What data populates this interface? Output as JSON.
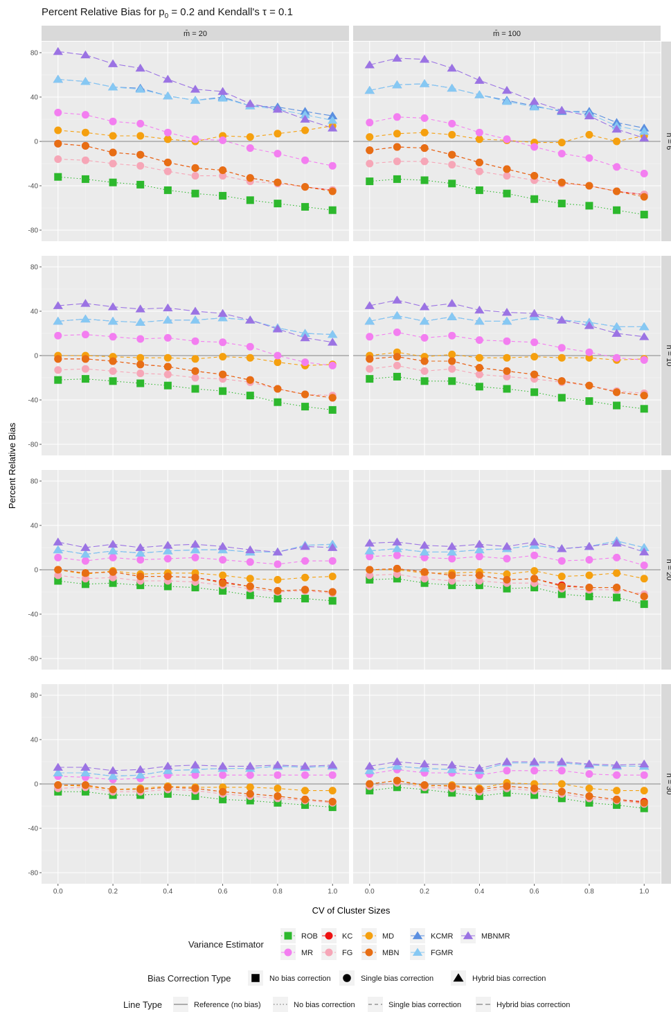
{
  "chart_data": {
    "type": "line",
    "title": "Percent Relative Bias for p₀ = 0.2 and Kendall's τ = 0.1",
    "title_parts": {
      "pre": "Percent Relative Bias for p",
      "sub": "0",
      "post": " = 0.2 and Kendall's τ = 0.1"
    },
    "xlabel": "CV of Cluster Sizes",
    "ylabel": "Percent Relative Bias",
    "x": [
      0.0,
      0.1,
      0.2,
      0.3,
      0.4,
      0.5,
      0.6,
      0.7,
      0.8,
      0.9,
      1.0
    ],
    "x_ticks": [
      "0.0",
      "0.2",
      "0.4",
      "0.6",
      "0.8",
      "1.0"
    ],
    "y_ticks": [
      -80,
      -40,
      0,
      40,
      80
    ],
    "ylim": [
      -90,
      90
    ],
    "col_strips": [
      "m̄ = 20",
      "m̄ = 100"
    ],
    "row_strips": [
      "n = 6",
      "n = 10",
      "n = 20",
      "n = 30"
    ],
    "reference_line": 0,
    "grid": true,
    "estimators": [
      {
        "name": "ROB",
        "color": "#2db82d",
        "shape": "square",
        "line": "dotted"
      },
      {
        "name": "KC",
        "color": "#ee1111",
        "shape": "circle",
        "line": "dashed"
      },
      {
        "name": "MD",
        "color": "#f5a00f",
        "shape": "circle",
        "line": "dashed"
      },
      {
        "name": "KCMR",
        "color": "#5b8fe0",
        "shape": "triangle",
        "line": "longdash"
      },
      {
        "name": "MBNMR",
        "color": "#9b73e3",
        "shape": "triangle",
        "line": "longdash"
      },
      {
        "name": "MR",
        "color": "#f37ef0",
        "shape": "circle",
        "line": "dashed"
      },
      {
        "name": "FG",
        "color": "#f6a6b7",
        "shape": "circle",
        "line": "dashed"
      },
      {
        "name": "MBN",
        "color": "#e76e14",
        "shape": "circle",
        "line": "dashed"
      },
      {
        "name": "FGMR",
        "color": "#86c8f3",
        "shape": "triangle",
        "line": "longdash"
      }
    ],
    "panels": [
      {
        "row": 0,
        "col": 0,
        "series": {
          "ROB": [
            -32,
            -34,
            -37,
            -39,
            -44,
            -47,
            -49,
            -53,
            -56,
            -59,
            -62
          ],
          "KC": [
            -2,
            -4,
            -10,
            -12,
            -19,
            -24,
            -26,
            -33,
            -37,
            -41,
            -44
          ],
          "MD": [
            10,
            8,
            5,
            5,
            2,
            0,
            5,
            4,
            7,
            10,
            14
          ],
          "KCMR": [
            56,
            54,
            49,
            48,
            41,
            37,
            40,
            32,
            31,
            27,
            23
          ],
          "MBNMR": [
            81,
            78,
            70,
            66,
            56,
            47,
            45,
            34,
            29,
            20,
            12
          ],
          "MR": [
            26,
            24,
            18,
            16,
            8,
            2,
            1,
            -6,
            -11,
            -17,
            -22
          ],
          "FG": [
            -16,
            -17,
            -20,
            -22,
            -27,
            -31,
            -31,
            -36,
            -38,
            -41,
            -44
          ],
          "MBN": [
            -2,
            -4,
            -10,
            -12,
            -19,
            -24,
            -26,
            -33,
            -37,
            -41,
            -45
          ],
          "FGMR": [
            56,
            54,
            49,
            47,
            41,
            37,
            39,
            32,
            29,
            24,
            19
          ]
        }
      },
      {
        "row": 0,
        "col": 1,
        "series": {
          "ROB": [
            -36,
            -34,
            -35,
            -38,
            -44,
            -47,
            -52,
            -56,
            -58,
            -62,
            -66
          ],
          "KC": [
            -8,
            -5,
            -6,
            -12,
            -19,
            -25,
            -31,
            -37,
            -40,
            -45,
            -48
          ],
          "MD": [
            4,
            7,
            8,
            6,
            2,
            1,
            -1,
            -1,
            6,
            0,
            5
          ],
          "KCMR": [
            46,
            51,
            52,
            48,
            42,
            37,
            32,
            27,
            27,
            17,
            12
          ],
          "MBNMR": [
            69,
            75,
            74,
            66,
            55,
            46,
            36,
            28,
            23,
            11,
            3
          ],
          "MR": [
            17,
            22,
            21,
            16,
            8,
            2,
            -5,
            -11,
            -15,
            -23,
            -29
          ],
          "FG": [
            -20,
            -18,
            -18,
            -21,
            -27,
            -31,
            -35,
            -38,
            -40,
            -45,
            -48
          ],
          "MBN": [
            -8,
            -5,
            -6,
            -12,
            -19,
            -25,
            -31,
            -37,
            -40,
            -45,
            -50
          ],
          "FGMR": [
            46,
            51,
            52,
            48,
            42,
            36,
            31,
            28,
            25,
            14,
            9
          ]
        }
      },
      {
        "row": 1,
        "col": 0,
        "series": {
          "ROB": [
            -22,
            -21,
            -23,
            -25,
            -27,
            -30,
            -32,
            -36,
            -42,
            -46,
            -49
          ],
          "KC": [
            -3,
            -3,
            -5,
            -8,
            -10,
            -14,
            -17,
            -22,
            -30,
            -35,
            -38
          ],
          "MD": [
            0,
            0,
            -1,
            -2,
            -2,
            -3,
            -1,
            -2,
            -6,
            -9,
            -8
          ],
          "KCMR": [
            31,
            33,
            31,
            30,
            32,
            32,
            34,
            32,
            25,
            20,
            19
          ],
          "MBNMR": [
            45,
            47,
            44,
            42,
            43,
            40,
            38,
            32,
            24,
            16,
            12
          ],
          "MR": [
            18,
            19,
            17,
            15,
            16,
            13,
            12,
            8,
            0,
            -6,
            -9
          ],
          "FG": [
            -13,
            -12,
            -14,
            -16,
            -17,
            -20,
            -21,
            -24,
            -30,
            -35,
            -36
          ],
          "MBN": [
            -3,
            -3,
            -5,
            -8,
            -10,
            -14,
            -17,
            -22,
            -30,
            -35,
            -38
          ],
          "FGMR": [
            31,
            33,
            31,
            30,
            32,
            32,
            34,
            32,
            25,
            20,
            19
          ]
        }
      },
      {
        "row": 1,
        "col": 1,
        "series": {
          "ROB": [
            -21,
            -19,
            -23,
            -23,
            -28,
            -30,
            -33,
            -38,
            -41,
            -45,
            -48
          ],
          "KC": [
            -3,
            -1,
            -5,
            -5,
            -11,
            -14,
            -17,
            -23,
            -27,
            -33,
            -36
          ],
          "MD": [
            0,
            3,
            -1,
            1,
            -2,
            -2,
            -1,
            -2,
            -2,
            -4,
            -3
          ],
          "KCMR": [
            31,
            36,
            31,
            35,
            31,
            31,
            35,
            32,
            30,
            26,
            26
          ],
          "MBNMR": [
            45,
            50,
            44,
            47,
            41,
            39,
            38,
            32,
            27,
            20,
            17
          ],
          "MR": [
            17,
            21,
            16,
            18,
            14,
            13,
            12,
            7,
            3,
            -2,
            -4
          ],
          "FG": [
            -12,
            -9,
            -14,
            -12,
            -17,
            -19,
            -21,
            -24,
            -27,
            -32,
            -34
          ],
          "MBN": [
            -3,
            -1,
            -5,
            -5,
            -11,
            -14,
            -17,
            -23,
            -27,
            -33,
            -36
          ],
          "FGMR": [
            31,
            36,
            31,
            35,
            31,
            31,
            35,
            32,
            30,
            26,
            26
          ]
        }
      },
      {
        "row": 2,
        "col": 0,
        "series": {
          "ROB": [
            -10,
            -13,
            -12,
            -14,
            -15,
            -16,
            -19,
            -23,
            -26,
            -26,
            -28
          ],
          "KC": [
            0,
            -3,
            -2,
            -6,
            -6,
            -7,
            -11,
            -15,
            -19,
            -18,
            -20
          ],
          "MD": [
            0,
            -4,
            -1,
            -4,
            -3,
            -3,
            -5,
            -8,
            -9,
            -7,
            -6
          ],
          "KCMR": [
            18,
            14,
            17,
            15,
            17,
            18,
            18,
            16,
            16,
            22,
            23
          ],
          "MBNMR": [
            25,
            20,
            23,
            20,
            22,
            23,
            21,
            18,
            16,
            21,
            20
          ],
          "MR": [
            11,
            8,
            11,
            9,
            10,
            11,
            9,
            7,
            5,
            8,
            8
          ],
          "FG": [
            -5,
            -8,
            -7,
            -10,
            -10,
            -11,
            -14,
            -17,
            -20,
            -19,
            -21
          ],
          "MBN": [
            0,
            -3,
            -2,
            -6,
            -6,
            -7,
            -12,
            -15,
            -19,
            -18,
            -20
          ],
          "FGMR": [
            18,
            14,
            17,
            15,
            17,
            18,
            18,
            16,
            16,
            22,
            23
          ]
        }
      },
      {
        "row": 2,
        "col": 1,
        "series": {
          "ROB": [
            -9,
            -8,
            -12,
            -14,
            -14,
            -17,
            -16,
            -22,
            -24,
            -25,
            -31
          ],
          "KC": [
            0,
            1,
            -2,
            -5,
            -5,
            -9,
            -8,
            -14,
            -16,
            -16,
            -24
          ],
          "MD": [
            0,
            0,
            -3,
            -3,
            -2,
            -4,
            -1,
            -6,
            -5,
            -3,
            -8
          ],
          "KCMR": [
            17,
            19,
            16,
            16,
            18,
            19,
            22,
            19,
            21,
            26,
            20
          ],
          "MBNMR": [
            24,
            25,
            22,
            21,
            23,
            21,
            25,
            19,
            21,
            24,
            16
          ],
          "MR": [
            12,
            13,
            11,
            10,
            12,
            10,
            13,
            8,
            9,
            11,
            4
          ],
          "FG": [
            -5,
            -4,
            -8,
            -10,
            -10,
            -12,
            -12,
            -17,
            -18,
            -18,
            -22
          ],
          "MBN": [
            0,
            1,
            -2,
            -5,
            -5,
            -9,
            -8,
            -15,
            -16,
            -16,
            -24
          ],
          "FGMR": [
            17,
            19,
            16,
            16,
            18,
            19,
            22,
            19,
            21,
            26,
            20
          ]
        }
      },
      {
        "row": 3,
        "col": 0,
        "series": {
          "ROB": [
            -7,
            -7,
            -10,
            -10,
            -9,
            -11,
            -14,
            -15,
            -17,
            -19,
            -21
          ],
          "KC": [
            -1,
            -1,
            -5,
            -5,
            -3,
            -4,
            -7,
            -9,
            -11,
            -14,
            -16
          ],
          "MD": [
            -1,
            -2,
            -5,
            -4,
            -2,
            -3,
            -3,
            -3,
            -4,
            -6,
            -6
          ],
          "KCMR": [
            10,
            10,
            7,
            8,
            12,
            13,
            14,
            14,
            16,
            15,
            16
          ],
          "MBNMR": [
            15,
            15,
            12,
            13,
            16,
            17,
            16,
            16,
            17,
            16,
            17
          ],
          "MR": [
            7,
            6,
            4,
            5,
            8,
            8,
            8,
            8,
            8,
            8,
            8
          ],
          "FG": [
            -4,
            -3,
            -7,
            -7,
            -5,
            -6,
            -9,
            -11,
            -13,
            -15,
            -17
          ],
          "MBN": [
            -1,
            -1,
            -5,
            -5,
            -3,
            -4,
            -7,
            -9,
            -11,
            -14,
            -16
          ],
          "FGMR": [
            10,
            10,
            7,
            8,
            12,
            13,
            14,
            14,
            16,
            15,
            16
          ]
        }
      },
      {
        "row": 3,
        "col": 1,
        "series": {
          "ROB": [
            -6,
            -3,
            -5,
            -8,
            -11,
            -8,
            -10,
            -13,
            -17,
            -19,
            -22
          ],
          "KC": [
            0,
            3,
            -1,
            -2,
            -5,
            -2,
            -4,
            -7,
            -11,
            -14,
            -16
          ],
          "MD": [
            0,
            3,
            -2,
            -1,
            -4,
            1,
            0,
            0,
            -4,
            -6,
            -6
          ],
          "KCMR": [
            12,
            16,
            14,
            13,
            12,
            19,
            19,
            19,
            17,
            16,
            16
          ],
          "MBNMR": [
            16,
            20,
            18,
            17,
            14,
            20,
            20,
            20,
            18,
            17,
            18
          ],
          "MR": [
            9,
            13,
            10,
            10,
            8,
            12,
            12,
            12,
            9,
            8,
            8
          ],
          "FG": [
            -2,
            1,
            -3,
            -4,
            -7,
            -4,
            -6,
            -9,
            -13,
            -15,
            -18
          ],
          "MBN": [
            0,
            3,
            -1,
            -2,
            -5,
            -2,
            -4,
            -7,
            -11,
            -14,
            -17
          ],
          "FGMR": [
            12,
            16,
            14,
            13,
            12,
            19,
            19,
            19,
            17,
            16,
            16
          ]
        }
      }
    ],
    "legend": {
      "variance_title": "Variance Estimator",
      "variance_rows": [
        [
          "ROB",
          "KC",
          "MD",
          "KCMR",
          "MBNMR"
        ],
        [
          "MR",
          "FG",
          "MBN",
          "FGMR"
        ]
      ],
      "bias_title": "Bias Correction Type",
      "bias_items": [
        {
          "shape": "square",
          "label": "No bias correction"
        },
        {
          "shape": "circle",
          "label": "Single bias correction"
        },
        {
          "shape": "triangle",
          "label": "Hybrid bias correction"
        }
      ],
      "line_title": "Line Type",
      "line_items": [
        {
          "line": "solid",
          "label": "Reference (no bias)"
        },
        {
          "line": "dotted",
          "label": "No bias correction"
        },
        {
          "line": "dashed",
          "label": "Single bias correction"
        },
        {
          "line": "longdash",
          "label": "Hybrid bias correction"
        }
      ]
    }
  }
}
